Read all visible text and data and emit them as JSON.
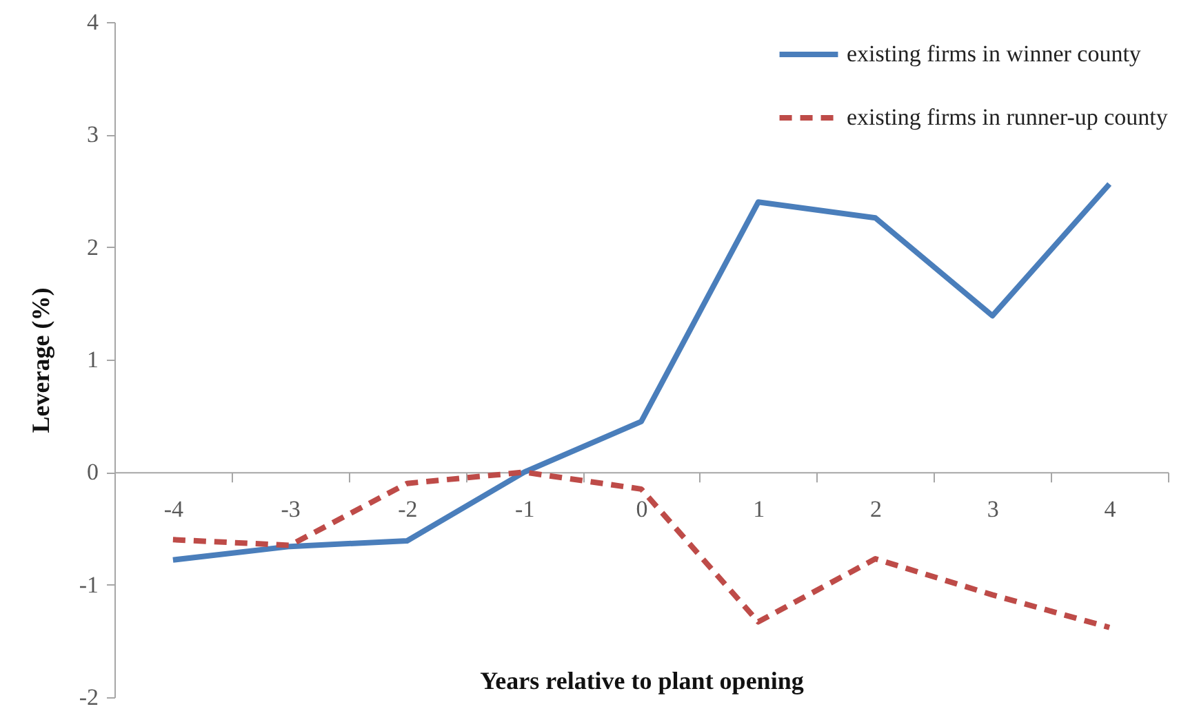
{
  "chart_data": {
    "type": "line",
    "xlabel": "Years relative to plant opening",
    "ylabel": "Leverage (%)",
    "categories": [
      "-4",
      "-3",
      "-2",
      "-1",
      "0",
      "1",
      "2",
      "3",
      "4"
    ],
    "ylim": [
      -2,
      4
    ],
    "yticks": [
      -2,
      -1,
      0,
      1,
      2,
      3,
      4
    ],
    "legend": "top right",
    "series": [
      {
        "name": "existing firms in winner county",
        "color": "#4a7ebb",
        "line_style": "solid",
        "values": [
          -0.78,
          -0.66,
          -0.61,
          0,
          0.45,
          2.4,
          2.26,
          1.39,
          2.56
        ]
      },
      {
        "name": "existing firms in runner-up county",
        "color": "#be4b48",
        "line_style": "dashed",
        "values": [
          -0.6,
          -0.65,
          -0.1,
          0,
          -0.15,
          -1.33,
          -0.77,
          -1.09,
          -1.38
        ]
      }
    ]
  }
}
